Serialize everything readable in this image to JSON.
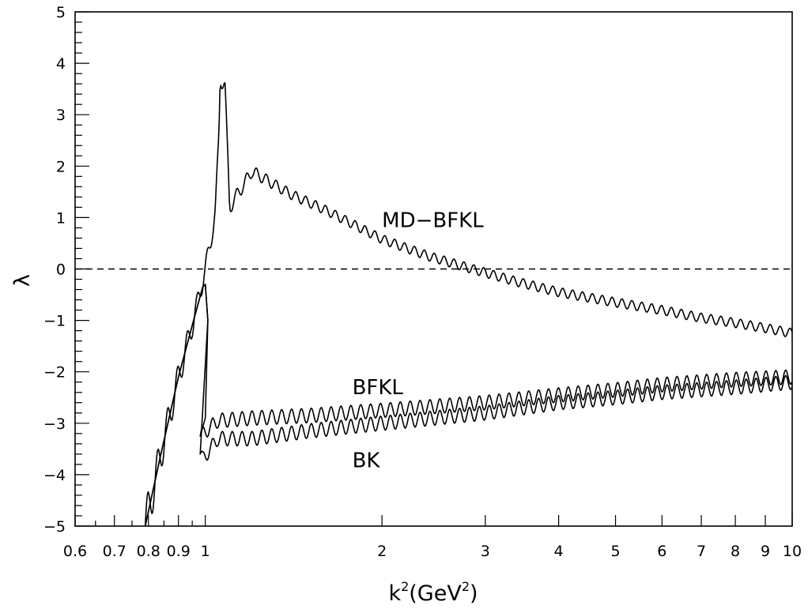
{
  "chart_data": {
    "type": "line",
    "title": "",
    "xlabel": "k²(GeV²)",
    "xlabel_parts": {
      "base": "k",
      "sup1": "2",
      "open": "(GeV",
      "sup2": "2",
      "close": ")"
    },
    "ylabel": "λ",
    "xscale": "log",
    "xlim": [
      0.6,
      10
    ],
    "ylim": [
      -5,
      5
    ],
    "grid": false,
    "legend": "none",
    "x_ticks": [
      {
        "value": 0.6,
        "label": "0.6"
      },
      {
        "value": 0.7,
        "label": "0.7"
      },
      {
        "value": 0.8,
        "label": "0.8"
      },
      {
        "value": 0.9,
        "label": "0.9"
      },
      {
        "value": 1,
        "label": "1"
      },
      {
        "value": 2,
        "label": "2"
      },
      {
        "value": 3,
        "label": "3"
      },
      {
        "value": 4,
        "label": "4"
      },
      {
        "value": 5,
        "label": "5"
      },
      {
        "value": 6,
        "label": "6"
      },
      {
        "value": 7,
        "label": "7"
      },
      {
        "value": 8,
        "label": "8"
      },
      {
        "value": 9,
        "label": "9"
      },
      {
        "value": 10,
        "label": "10"
      }
    ],
    "y_ticks": [
      {
        "value": 5,
        "label": "5"
      },
      {
        "value": 4,
        "label": "4"
      },
      {
        "value": 3,
        "label": "3"
      },
      {
        "value": 2,
        "label": "2"
      },
      {
        "value": 1,
        "label": "1"
      },
      {
        "value": 0,
        "label": "0"
      },
      {
        "value": -1,
        "label": "−1"
      },
      {
        "value": -2,
        "label": "−2"
      },
      {
        "value": -3,
        "label": "−3"
      },
      {
        "value": -4,
        "label": "−4"
      },
      {
        "value": -5,
        "label": "−5"
      }
    ],
    "reference_line": {
      "y": 0,
      "style": "dashed"
    },
    "series": [
      {
        "name": "MD−BFKL",
        "points": [
          [
            0.79,
            -5.0
          ],
          [
            0.84,
            -3.6
          ],
          [
            0.9,
            -2.1
          ],
          [
            0.95,
            -1.1
          ],
          [
            0.98,
            -0.45
          ],
          [
            1.0,
            0.0
          ],
          [
            1.02,
            0.5
          ],
          [
            1.04,
            1.1
          ],
          [
            1.055,
            2.6
          ],
          [
            1.06,
            3.7
          ],
          [
            1.08,
            3.6
          ],
          [
            1.1,
            1.2
          ],
          [
            1.2,
            1.9
          ],
          [
            1.4,
            1.45
          ],
          [
            1.6,
            1.15
          ],
          [
            1.8,
            0.85
          ],
          [
            2.0,
            0.58
          ],
          [
            2.4,
            0.25
          ],
          [
            2.85,
            0.0
          ],
          [
            3.4,
            -0.25
          ],
          [
            4.0,
            -0.45
          ],
          [
            5.0,
            -0.65
          ],
          [
            6.0,
            -0.8
          ],
          [
            7.0,
            -0.95
          ],
          [
            8.0,
            -1.05
          ],
          [
            9.0,
            -1.15
          ],
          [
            10.0,
            -1.25
          ]
        ],
        "label": "MD−BFKL"
      },
      {
        "name": "BFKL",
        "points": [
          [
            0.79,
            -5.0
          ],
          [
            0.84,
            -3.6
          ],
          [
            0.9,
            -2.1
          ],
          [
            0.95,
            -1.1
          ],
          [
            0.99,
            -0.35
          ],
          [
            1.0,
            -0.3
          ],
          [
            1.01,
            -1.0
          ],
          [
            1.0,
            -2.9
          ],
          [
            0.98,
            -3.25
          ],
          [
            1.05,
            -2.95
          ],
          [
            1.2,
            -2.9
          ],
          [
            1.5,
            -2.85
          ],
          [
            2.0,
            -2.75
          ],
          [
            3.0,
            -2.6
          ],
          [
            4.0,
            -2.45
          ],
          [
            5.0,
            -2.35
          ],
          [
            6.0,
            -2.25
          ],
          [
            8.0,
            -2.15
          ],
          [
            10.0,
            -2.1
          ]
        ],
        "label": "BFKL"
      },
      {
        "name": "BK",
        "points": [
          [
            0.79,
            -5.0
          ],
          [
            0.84,
            -3.6
          ],
          [
            0.9,
            -2.1
          ],
          [
            0.95,
            -1.1
          ],
          [
            0.99,
            -0.35
          ],
          [
            1.0,
            -0.3
          ],
          [
            1.01,
            -1.0
          ],
          [
            0.98,
            -3.6
          ],
          [
            0.99,
            -3.7
          ],
          [
            1.05,
            -3.3
          ],
          [
            1.2,
            -3.3
          ],
          [
            1.5,
            -3.15
          ],
          [
            2.0,
            -3.0
          ],
          [
            3.0,
            -2.8
          ],
          [
            4.0,
            -2.6
          ],
          [
            5.0,
            -2.5
          ],
          [
            6.0,
            -2.4
          ],
          [
            8.0,
            -2.3
          ],
          [
            10.0,
            -2.2
          ]
        ],
        "label": "BK"
      }
    ],
    "annotations": [
      {
        "text": "MD−BFKL",
        "x": 2.0,
        "y": 0.95
      },
      {
        "text": "BFKL",
        "x": 1.78,
        "y": -2.3
      },
      {
        "text": "BK",
        "x": 1.78,
        "y": -3.72
      }
    ]
  }
}
